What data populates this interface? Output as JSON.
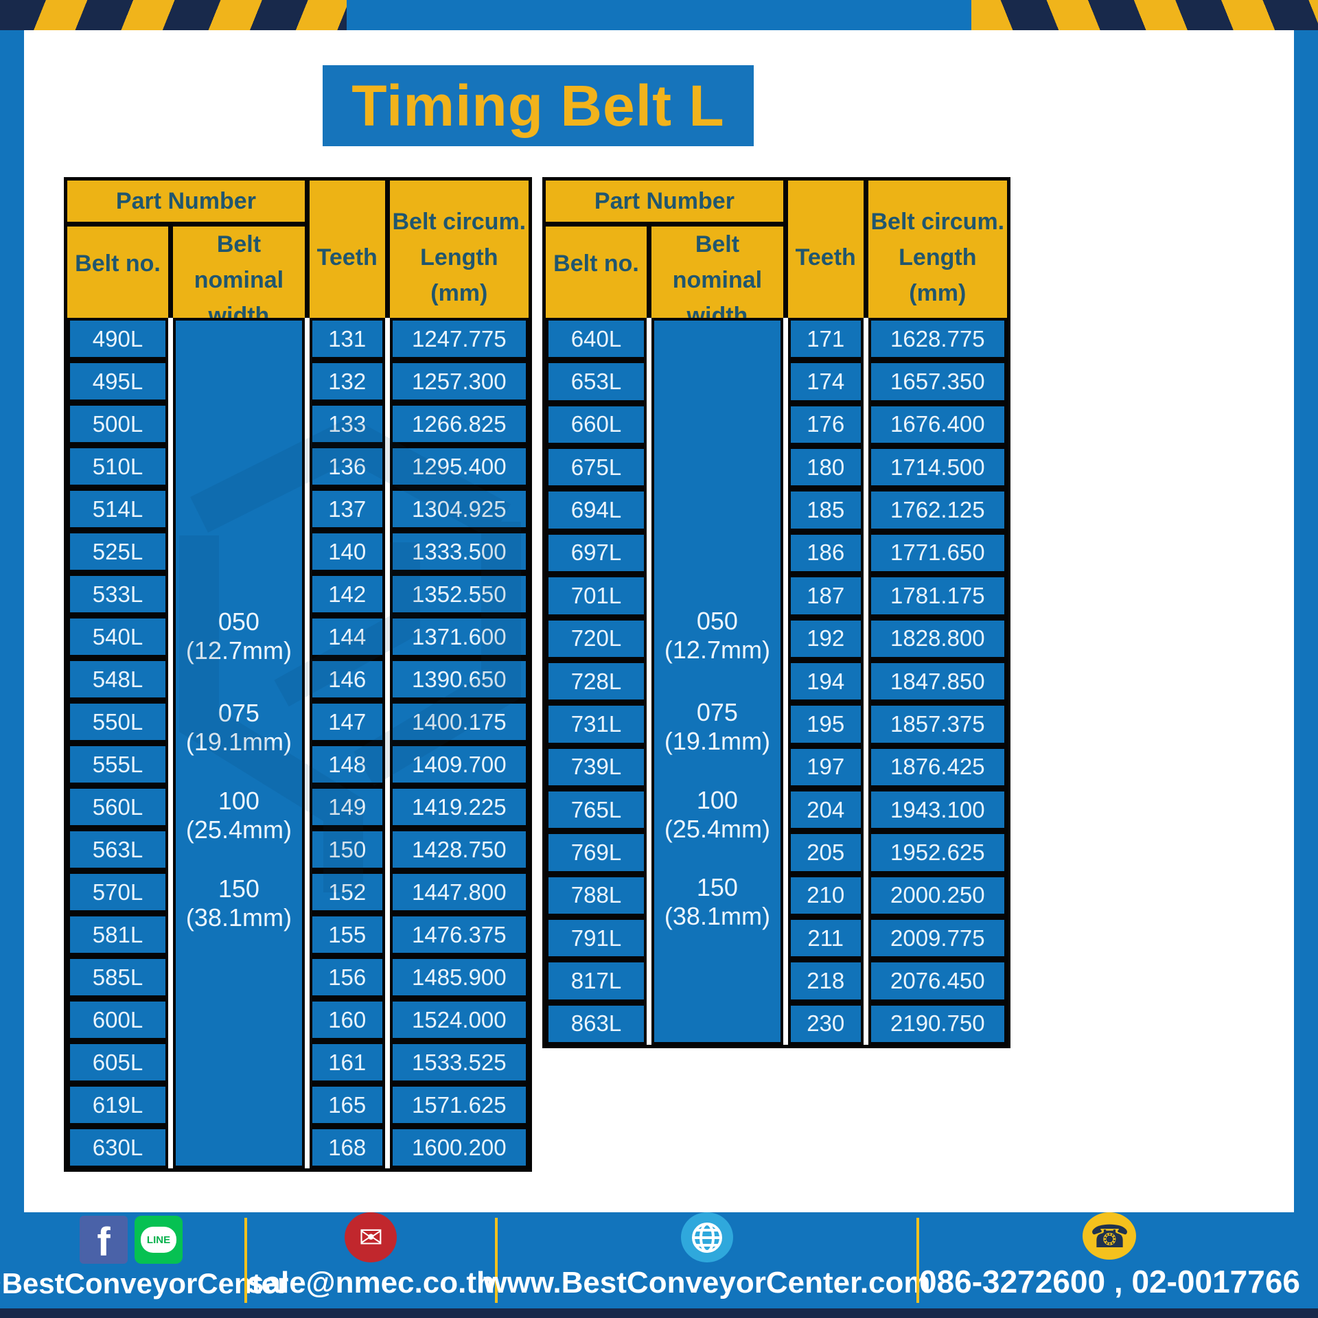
{
  "title": "Timing Belt L",
  "table_header": {
    "part_number": "Part Number",
    "belt_no": "Belt no.",
    "belt_nominal_width_line1": "Belt nominal",
    "belt_nominal_width_line2": "width",
    "teeth": "Teeth",
    "belt_circum_line1": "Belt circum.",
    "belt_circum_line2": "Length",
    "belt_circum_line3": "(mm)"
  },
  "width_options": [
    "050 (12.7mm)",
    "075 (19.1mm)",
    "100 (25.4mm)",
    "150 (38.1mm)"
  ],
  "tables": [
    {
      "rows": [
        {
          "belt": "490L",
          "teeth": "131",
          "length": "1247.775"
        },
        {
          "belt": "495L",
          "teeth": "132",
          "length": "1257.300"
        },
        {
          "belt": "500L",
          "teeth": "133",
          "length": "1266.825"
        },
        {
          "belt": "510L",
          "teeth": "136",
          "length": "1295.400"
        },
        {
          "belt": "514L",
          "teeth": "137",
          "length": "1304.925"
        },
        {
          "belt": "525L",
          "teeth": "140",
          "length": "1333.500"
        },
        {
          "belt": "533L",
          "teeth": "142",
          "length": "1352.550"
        },
        {
          "belt": "540L",
          "teeth": "144",
          "length": "1371.600"
        },
        {
          "belt": "548L",
          "teeth": "146",
          "length": "1390.650"
        },
        {
          "belt": "550L",
          "teeth": "147",
          "length": "1400.175"
        },
        {
          "belt": "555L",
          "teeth": "148",
          "length": "1409.700"
        },
        {
          "belt": "560L",
          "teeth": "149",
          "length": "1419.225"
        },
        {
          "belt": "563L",
          "teeth": "150",
          "length": "1428.750"
        },
        {
          "belt": "570L",
          "teeth": "152",
          "length": "1447.800"
        },
        {
          "belt": "581L",
          "teeth": "155",
          "length": "1476.375"
        },
        {
          "belt": "585L",
          "teeth": "156",
          "length": "1485.900"
        },
        {
          "belt": "600L",
          "teeth": "160",
          "length": "1524.000"
        },
        {
          "belt": "605L",
          "teeth": "161",
          "length": "1533.525"
        },
        {
          "belt": "619L",
          "teeth": "165",
          "length": "1571.625"
        },
        {
          "belt": "630L",
          "teeth": "168",
          "length": "1600.200"
        }
      ]
    },
    {
      "rows": [
        {
          "belt": "640L",
          "teeth": "171",
          "length": "1628.775"
        },
        {
          "belt": "653L",
          "teeth": "174",
          "length": "1657.350"
        },
        {
          "belt": "660L",
          "teeth": "176",
          "length": "1676.400"
        },
        {
          "belt": "675L",
          "teeth": "180",
          "length": "1714.500"
        },
        {
          "belt": "694L",
          "teeth": "185",
          "length": "1762.125"
        },
        {
          "belt": "697L",
          "teeth": "186",
          "length": "1771.650"
        },
        {
          "belt": "701L",
          "teeth": "187",
          "length": "1781.175"
        },
        {
          "belt": "720L",
          "teeth": "192",
          "length": "1828.800"
        },
        {
          "belt": "728L",
          "teeth": "194",
          "length": "1847.850"
        },
        {
          "belt": "731L",
          "teeth": "195",
          "length": "1857.375"
        },
        {
          "belt": "739L",
          "teeth": "197",
          "length": "1876.425"
        },
        {
          "belt": "765L",
          "teeth": "204",
          "length": "1943.100"
        },
        {
          "belt": "769L",
          "teeth": "205",
          "length": "1952.625"
        },
        {
          "belt": "788L",
          "teeth": "210",
          "length": "2000.250"
        },
        {
          "belt": "791L",
          "teeth": "211",
          "length": "2009.775"
        },
        {
          "belt": "817L",
          "teeth": "218",
          "length": "2076.450"
        },
        {
          "belt": "863L",
          "teeth": "230",
          "length": "2190.750"
        }
      ]
    }
  ],
  "footer": {
    "social_handle": "@BestConveyorCenter",
    "facebook_label": "f",
    "line_label": "LINE",
    "email": "sale@nmec.co.th",
    "website": "www.BestConveyorCenter.com",
    "phone_numbers": "086-3272600 , 02-0017766"
  },
  "colors": {
    "frame_blue": "#1274BC",
    "cell_blue": "#1173B9",
    "header_yellow": "#EDB315",
    "title_yellow": "#F2B31C",
    "navy": "#18294B",
    "header_text": "#20566F"
  }
}
